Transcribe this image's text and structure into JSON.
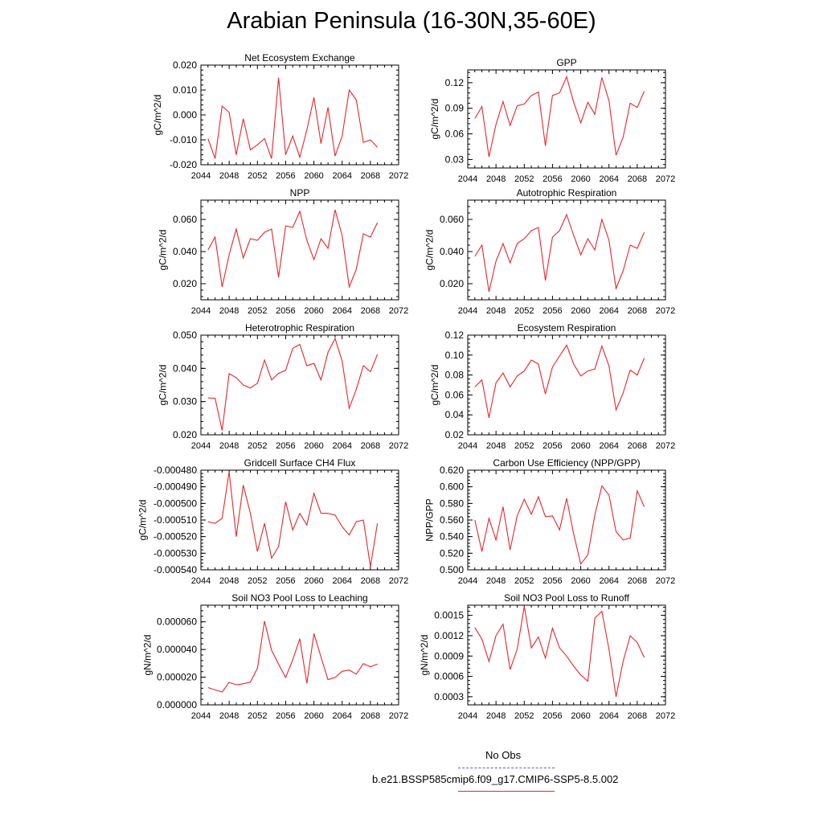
{
  "figure": {
    "title": "Arabian Peninsula (16-30N,35-60E)",
    "line_color": "#e6272b",
    "obs_line_color": "#5a5ad8"
  },
  "legend": {
    "obs_label": "No Obs",
    "model_label": "b.e21.BSSP585cmip6.f09_g17.CMIP6-SSP5-8.5.002"
  },
  "chart_data": [
    {
      "type": "line",
      "title": "Net Ecosystem Exchange",
      "ylabel": "gC/m^2/d",
      "xlim": [
        2044,
        2072
      ],
      "xticks": [
        "2044",
        "2048",
        "2052",
        "2056",
        "2060",
        "2064",
        "2068",
        "2072"
      ],
      "ylim": [
        -0.02,
        0.02
      ],
      "yticks": [
        "-0.020",
        "-0.010",
        "0.000",
        "0.010",
        "0.020"
      ],
      "x": [
        2045,
        2046,
        2047,
        2048,
        2049,
        2050,
        2051,
        2052,
        2053,
        2054,
        2055,
        2056,
        2057,
        2058,
        2059,
        2060,
        2061,
        2062,
        2063,
        2064,
        2065,
        2066,
        2067,
        2068,
        2069
      ],
      "values": [
        -0.0095,
        -0.0175,
        0.0035,
        0.001,
        -0.016,
        -0.0015,
        -0.014,
        -0.012,
        -0.0095,
        -0.0175,
        0.015,
        -0.016,
        -0.0085,
        -0.017,
        -0.006,
        0.007,
        -0.0115,
        0.003,
        -0.0165,
        -0.0085,
        0.01,
        0.006,
        -0.011,
        -0.01,
        -0.013
      ]
    },
    {
      "type": "line",
      "title": "GPP",
      "ylabel": "gC/m^2/d",
      "xlim": [
        2044,
        2072
      ],
      "xticks": [
        "2044",
        "2048",
        "2052",
        "2056",
        "2060",
        "2064",
        "2068",
        "2072"
      ],
      "ylim": [
        0.02,
        0.135
      ],
      "yticks": [
        "0.03",
        "0.06",
        "0.09",
        "0.12"
      ],
      "x": [
        2045,
        2046,
        2047,
        2048,
        2049,
        2050,
        2051,
        2052,
        2053,
        2054,
        2055,
        2056,
        2057,
        2058,
        2059,
        2060,
        2061,
        2062,
        2063,
        2064,
        2065,
        2066,
        2067,
        2068,
        2069
      ],
      "values": [
        0.078,
        0.092,
        0.033,
        0.071,
        0.098,
        0.07,
        0.093,
        0.095,
        0.105,
        0.109,
        0.046,
        0.105,
        0.108,
        0.127,
        0.097,
        0.073,
        0.097,
        0.083,
        0.126,
        0.099,
        0.035,
        0.056,
        0.096,
        0.091,
        0.11
      ]
    },
    {
      "type": "line",
      "title": "NPP",
      "ylabel": "gC/m^2/d",
      "xlim": [
        2044,
        2072
      ],
      "xticks": [
        "2044",
        "2048",
        "2052",
        "2056",
        "2060",
        "2064",
        "2068",
        "2072"
      ],
      "ylim": [
        0.01,
        0.072
      ],
      "yticks": [
        "0.020",
        "0.040",
        "0.060"
      ],
      "x": [
        2045,
        2046,
        2047,
        2048,
        2049,
        2050,
        2051,
        2052,
        2053,
        2054,
        2055,
        2056,
        2057,
        2058,
        2059,
        2060,
        2061,
        2062,
        2063,
        2064,
        2065,
        2066,
        2067,
        2068,
        2069
      ],
      "values": [
        0.041,
        0.049,
        0.018,
        0.038,
        0.054,
        0.036,
        0.048,
        0.047,
        0.052,
        0.054,
        0.024,
        0.056,
        0.055,
        0.065,
        0.047,
        0.035,
        0.048,
        0.042,
        0.066,
        0.05,
        0.018,
        0.029,
        0.051,
        0.049,
        0.058
      ]
    },
    {
      "type": "line",
      "title": "Autotrophic Respiration",
      "ylabel": "gC/m^2/d",
      "xlim": [
        2044,
        2072
      ],
      "xticks": [
        "2044",
        "2048",
        "2052",
        "2056",
        "2060",
        "2064",
        "2068",
        "2072"
      ],
      "ylim": [
        0.01,
        0.072
      ],
      "yticks": [
        "0.020",
        "0.040",
        "0.060"
      ],
      "x": [
        2045,
        2046,
        2047,
        2048,
        2049,
        2050,
        2051,
        2052,
        2053,
        2054,
        2055,
        2056,
        2057,
        2058,
        2059,
        2060,
        2061,
        2062,
        2063,
        2064,
        2065,
        2066,
        2067,
        2068,
        2069
      ],
      "values": [
        0.037,
        0.044,
        0.015,
        0.034,
        0.045,
        0.033,
        0.045,
        0.048,
        0.053,
        0.055,
        0.022,
        0.049,
        0.053,
        0.063,
        0.05,
        0.038,
        0.048,
        0.041,
        0.06,
        0.047,
        0.017,
        0.028,
        0.044,
        0.042,
        0.052
      ]
    },
    {
      "type": "line",
      "title": "Heterotrophic Respiration",
      "ylabel": "gC/m^2/d",
      "xlim": [
        2044,
        2072
      ],
      "xticks": [
        "2044",
        "2048",
        "2052",
        "2056",
        "2060",
        "2064",
        "2068",
        "2072"
      ],
      "ylim": [
        0.02,
        0.05
      ],
      "yticks": [
        "0.020",
        "0.030",
        "0.040",
        "0.050"
      ],
      "x": [
        2045,
        2046,
        2047,
        2048,
        2049,
        2050,
        2051,
        2052,
        2053,
        2054,
        2055,
        2056,
        2057,
        2058,
        2059,
        2060,
        2061,
        2062,
        2063,
        2064,
        2065,
        2066,
        2067,
        2068,
        2069
      ],
      "values": [
        0.0311,
        0.031,
        0.0213,
        0.0384,
        0.0372,
        0.035,
        0.0341,
        0.0355,
        0.0425,
        0.0365,
        0.0385,
        0.0394,
        0.046,
        0.0472,
        0.0408,
        0.0415,
        0.0365,
        0.0448,
        0.049,
        0.0422,
        0.028,
        0.0337,
        0.0408,
        0.039,
        0.0442
      ]
    },
    {
      "type": "line",
      "title": "Ecosystem Respiration",
      "ylabel": "gC/m^2/d",
      "xlim": [
        2044,
        2072
      ],
      "xticks": [
        "2044",
        "2048",
        "2052",
        "2056",
        "2060",
        "2064",
        "2068",
        "2072"
      ],
      "ylim": [
        0.02,
        0.12
      ],
      "yticks": [
        "0.02",
        "0.04",
        "0.06",
        "0.08",
        "0.10",
        "0.12"
      ],
      "x": [
        2045,
        2046,
        2047,
        2048,
        2049,
        2050,
        2051,
        2052,
        2053,
        2054,
        2055,
        2056,
        2057,
        2058,
        2059,
        2060,
        2061,
        2062,
        2063,
        2064,
        2065,
        2066,
        2067,
        2068,
        2069
      ],
      "values": [
        0.068,
        0.075,
        0.037,
        0.072,
        0.082,
        0.068,
        0.079,
        0.084,
        0.095,
        0.091,
        0.061,
        0.088,
        0.099,
        0.11,
        0.091,
        0.079,
        0.084,
        0.086,
        0.109,
        0.089,
        0.045,
        0.062,
        0.085,
        0.08,
        0.097
      ]
    },
    {
      "type": "line",
      "title": "Gridcell Surface CH4 Flux",
      "ylabel": "gC/m^2/d",
      "xlim": [
        2044,
        2072
      ],
      "xticks": [
        "2044",
        "2048",
        "2052",
        "2056",
        "2060",
        "2064",
        "2068",
        "2072"
      ],
      "ylim": [
        -0.00054,
        -0.00048
      ],
      "yticks": [
        "-0.000540",
        "-0.000530",
        "-0.000520",
        "-0.000510",
        "-0.000500",
        "-0.000490",
        "-0.000480"
      ],
      "x": [
        2045,
        2046,
        2047,
        2048,
        2049,
        2050,
        2051,
        2052,
        2053,
        2054,
        2055,
        2056,
        2057,
        2058,
        2059,
        2060,
        2061,
        2062,
        2063,
        2064,
        2065,
        2066,
        2067,
        2068,
        2069
      ],
      "values": [
        -0.000511,
        -0.000512,
        -0.000509,
        -0.000481,
        -0.00052,
        -0.000489,
        -0.000506,
        -0.000529,
        -0.000512,
        -0.000533,
        -0.000526,
        -0.000499,
        -0.000516,
        -0.000506,
        -0.000513,
        -0.000494,
        -0.000506,
        -0.000506,
        -0.000507,
        -0.000514,
        -0.000519,
        -0.000511,
        -0.00051,
        -0.000538,
        -0.000512
      ]
    },
    {
      "type": "line",
      "title": "Carbon Use Efficiency (NPP/GPP)",
      "ylabel": "NPP/GPP",
      "xlim": [
        2044,
        2072
      ],
      "xticks": [
        "2044",
        "2048",
        "2052",
        "2056",
        "2060",
        "2064",
        "2068",
        "2072"
      ],
      "ylim": [
        0.5,
        0.62
      ],
      "yticks": [
        "0.500",
        "0.520",
        "0.540",
        "0.560",
        "0.580",
        "0.600",
        "0.620"
      ],
      "x": [
        2045,
        2046,
        2047,
        2048,
        2049,
        2050,
        2051,
        2052,
        2053,
        2054,
        2055,
        2056,
        2057,
        2058,
        2059,
        2060,
        2061,
        2062,
        2063,
        2064,
        2065,
        2066,
        2067,
        2068,
        2069
      ],
      "values": [
        0.56,
        0.522,
        0.562,
        0.536,
        0.576,
        0.524,
        0.565,
        0.585,
        0.567,
        0.588,
        0.564,
        0.565,
        0.548,
        0.586,
        0.543,
        0.507,
        0.518,
        0.566,
        0.601,
        0.59,
        0.546,
        0.536,
        0.538,
        0.595,
        0.576
      ]
    },
    {
      "type": "line",
      "title": "Soil NO3 Pool Loss to Leaching",
      "ylabel": "gN/m^2/d",
      "xlim": [
        2044,
        2072
      ],
      "xticks": [
        "2044",
        "2048",
        "2052",
        "2056",
        "2060",
        "2064",
        "2068",
        "2072"
      ],
      "ylim": [
        0,
        7.2e-05
      ],
      "yticks": [
        "0.000000",
        "0.000020",
        "0.000040",
        "0.000060"
      ],
      "x": [
        2045,
        2046,
        2047,
        2048,
        2049,
        2050,
        2051,
        2052,
        2053,
        2054,
        2055,
        2056,
        2057,
        2058,
        2059,
        2060,
        2061,
        2062,
        2063,
        2064,
        2065,
        2066,
        2067,
        2068,
        2069
      ],
      "values": [
        1.25e-05,
        1.08e-05,
        9.3e-06,
        1.62e-05,
        1.45e-05,
        1.52e-05,
        1.65e-05,
        2.65e-05,
        6.05e-05,
        3.95e-05,
        2.95e-05,
        1.98e-05,
        3.25e-05,
        4.78e-05,
        1.55e-05,
        5.15e-05,
        3.45e-05,
        1.82e-05,
        1.98e-05,
        2.42e-05,
        2.52e-05,
        2.22e-05,
        2.98e-05,
        2.75e-05,
        2.95e-05
      ]
    },
    {
      "type": "line",
      "title": "Soil NO3 Pool Loss to Runoff",
      "ylabel": "gN/m^2/d",
      "xlim": [
        2044,
        2072
      ],
      "xticks": [
        "2044",
        "2048",
        "2052",
        "2056",
        "2060",
        "2064",
        "2068",
        "2072"
      ],
      "ylim": [
        0.00018,
        0.00165
      ],
      "yticks": [
        "0.0003",
        "0.0006",
        "0.0009",
        "0.0012",
        "0.0015"
      ],
      "x": [
        2045,
        2046,
        2047,
        2048,
        2049,
        2050,
        2051,
        2052,
        2053,
        2054,
        2055,
        2056,
        2057,
        2058,
        2059,
        2060,
        2061,
        2062,
        2063,
        2064,
        2065,
        2066,
        2067,
        2068,
        2069
      ],
      "values": [
        0.00132,
        0.00115,
        0.00082,
        0.0012,
        0.00137,
        0.0007,
        0.001,
        0.00163,
        0.00102,
        0.00118,
        0.00087,
        0.00131,
        0.00102,
        0.0009,
        0.00075,
        0.00062,
        0.00053,
        0.00146,
        0.00156,
        0.001,
        0.0003,
        0.00082,
        0.0012,
        0.0011,
        0.00088
      ]
    }
  ]
}
